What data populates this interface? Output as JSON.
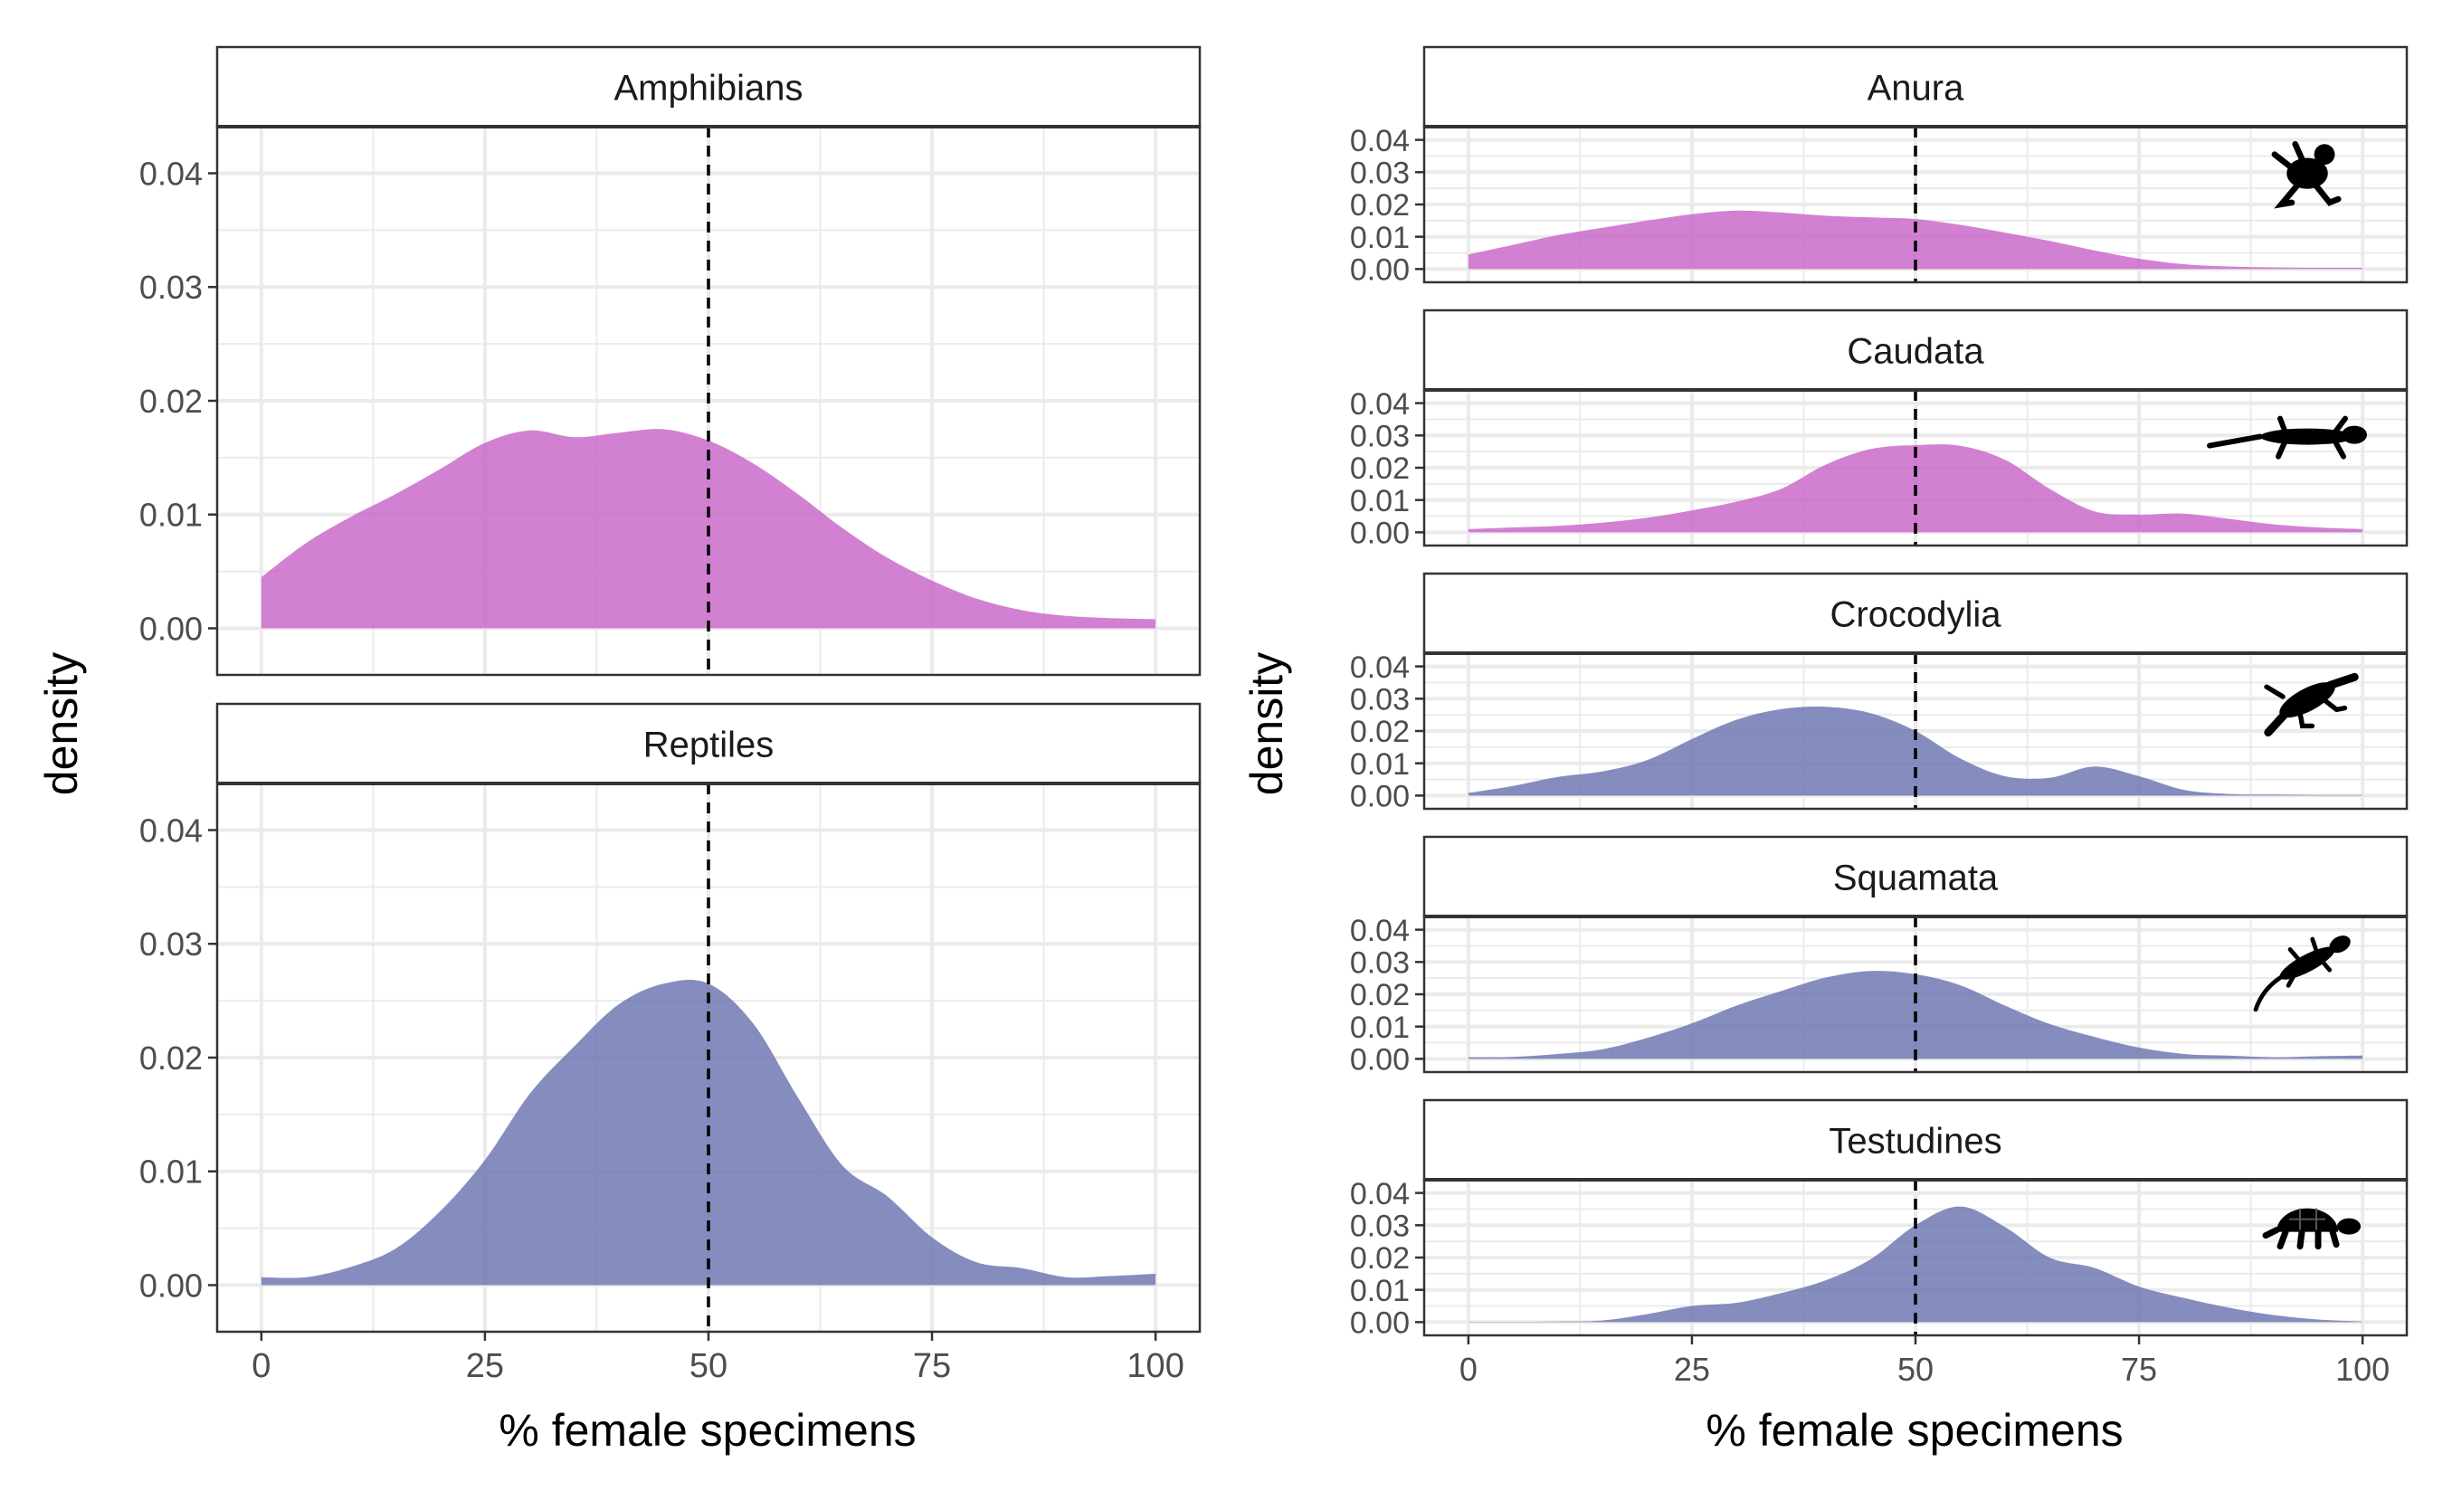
{
  "colors": {
    "amphibian_fill": "#c865c8",
    "reptile_fill": "#6a74b0",
    "grid": "#ebebeb",
    "strip_border": "#333333",
    "reference_line": "#000000"
  },
  "left_plot": {
    "ylabel": "density",
    "xlabel": "% female specimens",
    "x_ticks": [
      "0",
      "25",
      "50",
      "75",
      "100"
    ],
    "y_ticks": [
      "0.00",
      "0.01",
      "0.02",
      "0.03",
      "0.04"
    ]
  },
  "right_plot": {
    "ylabel": "density",
    "xlabel": "% female specimens",
    "x_ticks": [
      "0",
      "25",
      "50",
      "75",
      "100"
    ],
    "y_ticks": [
      "0.00",
      "0.01",
      "0.02",
      "0.03",
      "0.04"
    ]
  },
  "chart_data": [
    {
      "type": "area",
      "facets": [
        {
          "name": "Amphibians",
          "group": "amphibian",
          "x": [
            0,
            5,
            10,
            15,
            20,
            25,
            30,
            35,
            40,
            45,
            50,
            55,
            60,
            65,
            70,
            75,
            80,
            85,
            90,
            95,
            100
          ],
          "y": [
            0.0045,
            0.0075,
            0.0098,
            0.0118,
            0.014,
            0.0163,
            0.0174,
            0.0168,
            0.0172,
            0.0175,
            0.0165,
            0.0145,
            0.0118,
            0.0088,
            0.0062,
            0.0042,
            0.0026,
            0.0016,
            0.0011,
            0.0009,
            0.0008
          ]
        },
        {
          "name": "Reptiles",
          "group": "reptile",
          "x": [
            0,
            5,
            10,
            15,
            20,
            25,
            30,
            35,
            40,
            45,
            50,
            55,
            60,
            65,
            70,
            75,
            80,
            85,
            90,
            95,
            100
          ],
          "y": [
            0.0007,
            0.0007,
            0.0016,
            0.0032,
            0.0065,
            0.011,
            0.0168,
            0.021,
            0.0247,
            0.0265,
            0.0265,
            0.023,
            0.0165,
            0.0105,
            0.0078,
            0.0042,
            0.002,
            0.0015,
            0.0007,
            0.0008,
            0.001
          ]
        }
      ],
      "xlabel": "% female specimens",
      "ylabel": "density",
      "xlim": [
        0,
        100
      ],
      "ylim": [
        0,
        0.04
      ],
      "reference_line_x": 50,
      "grid": true
    },
    {
      "type": "area",
      "facets": [
        {
          "name": "Anura",
          "group": "amphibian",
          "icon": "frog-icon",
          "x": [
            0,
            5,
            10,
            15,
            20,
            25,
            30,
            35,
            40,
            45,
            50,
            55,
            60,
            65,
            70,
            75,
            80,
            85,
            90,
            95,
            100
          ],
          "y": [
            0.0045,
            0.0075,
            0.0105,
            0.0128,
            0.015,
            0.017,
            0.0181,
            0.0175,
            0.0165,
            0.016,
            0.0155,
            0.0137,
            0.0113,
            0.0087,
            0.0058,
            0.0032,
            0.0015,
            0.0008,
            0.0005,
            0.0004,
            0.0004
          ]
        },
        {
          "name": "Caudata",
          "group": "amphibian",
          "icon": "salamander-icon",
          "x": [
            0,
            5,
            10,
            15,
            20,
            25,
            30,
            35,
            40,
            45,
            50,
            55,
            60,
            65,
            70,
            75,
            80,
            85,
            90,
            95,
            100
          ],
          "y": [
            0.001,
            0.0015,
            0.002,
            0.003,
            0.0045,
            0.0068,
            0.0095,
            0.0135,
            0.021,
            0.0258,
            0.027,
            0.0268,
            0.0225,
            0.0135,
            0.0065,
            0.0055,
            0.0058,
            0.0042,
            0.0025,
            0.0015,
            0.001
          ]
        },
        {
          "name": "Crocodylia",
          "group": "reptile",
          "icon": "crocodile-icon",
          "x": [
            0,
            5,
            10,
            15,
            20,
            25,
            30,
            35,
            40,
            45,
            50,
            55,
            60,
            65,
            70,
            75,
            80,
            85,
            90,
            95,
            100
          ],
          "y": [
            0.0008,
            0.003,
            0.0058,
            0.0075,
            0.011,
            0.0175,
            0.0235,
            0.0268,
            0.0275,
            0.0255,
            0.02,
            0.0115,
            0.006,
            0.0055,
            0.009,
            0.006,
            0.0018,
            0.0005,
            0.0003,
            0.0002,
            0.0002
          ]
        },
        {
          "name": "Squamata",
          "group": "reptile",
          "icon": "lizard-icon",
          "x": [
            0,
            5,
            10,
            15,
            20,
            25,
            30,
            35,
            40,
            45,
            50,
            55,
            60,
            65,
            70,
            75,
            80,
            85,
            90,
            95,
            100
          ],
          "y": [
            0.0005,
            0.0006,
            0.0015,
            0.003,
            0.0065,
            0.011,
            0.0165,
            0.021,
            0.0252,
            0.0272,
            0.0262,
            0.0228,
            0.0165,
            0.0108,
            0.0068,
            0.0035,
            0.0015,
            0.001,
            0.0005,
            0.0008,
            0.001
          ]
        },
        {
          "name": "Testudines",
          "group": "reptile",
          "icon": "turtle-icon",
          "x": [
            0,
            5,
            10,
            15,
            20,
            25,
            30,
            35,
            40,
            45,
            50,
            55,
            60,
            65,
            70,
            75,
            80,
            85,
            90,
            95,
            100
          ],
          "y": [
            0.0001,
            0.0001,
            0.0002,
            0.0005,
            0.0025,
            0.005,
            0.006,
            0.009,
            0.013,
            0.0195,
            0.03,
            0.0358,
            0.0295,
            0.02,
            0.0168,
            0.011,
            0.0075,
            0.0045,
            0.0022,
            0.0008,
            0.0002
          ]
        }
      ],
      "xlabel": "% female specimens",
      "ylabel": "density",
      "xlim": [
        0,
        100
      ],
      "ylim": [
        0,
        0.04
      ],
      "reference_line_x": 50,
      "grid": true
    }
  ]
}
